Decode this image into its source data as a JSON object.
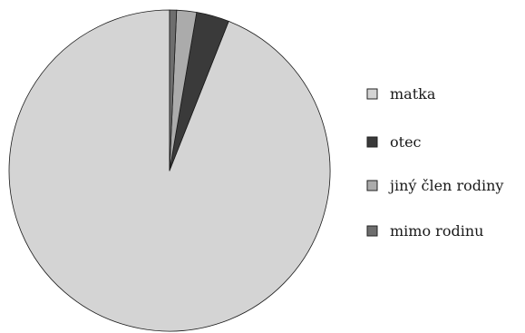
{
  "chart_data": {
    "type": "pie",
    "title": "",
    "categories": [
      "matka",
      "otec",
      "jiný člen rodiny",
      "mimo rodinu"
    ],
    "values": [
      94.0,
      3.3,
      2.0,
      0.7
    ],
    "colors": [
      "#d4d4d4",
      "#3a3a3a",
      "#ababab",
      "#6e6e6e"
    ],
    "start_angle_deg": 0,
    "direction": "counterclockwise",
    "legend": "right"
  }
}
